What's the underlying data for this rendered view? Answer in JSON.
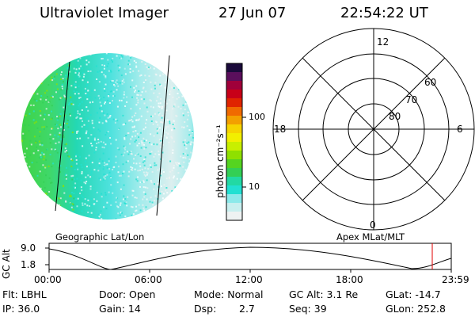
{
  "header": {
    "instrument": "Ultraviolet Imager",
    "date": "27 Jun 07",
    "time": "22:54:22 UT"
  },
  "colorbar": {
    "label": "photon cm⁻²s⁻¹",
    "ticks": [
      "100",
      "10"
    ],
    "colors": [
      "#1a0a3a",
      "#5a0f5c",
      "#a0003a",
      "#c80018",
      "#e02400",
      "#f06a00",
      "#f3a000",
      "#f6d400",
      "#f2ef00",
      "#c8ef00",
      "#8fe000",
      "#55d420",
      "#33cf55",
      "#22d9a4",
      "#22e0d2",
      "#8ce9ea",
      "#c8efef",
      "#eef2f2"
    ]
  },
  "polar": {
    "mlt_labels": {
      "top": "12",
      "left": "18",
      "right": "6",
      "bottom": "0"
    },
    "lat_labels": [
      "60",
      "70",
      "80"
    ]
  },
  "timeline": {
    "left_header": "Geographic Lat/Lon",
    "right_header": "Apex MLat/MLT",
    "ylabel": "GC Alt",
    "yticks": [
      "9.0",
      "1.8"
    ],
    "xticks": [
      "00:00",
      "06:00",
      "12:00",
      "18:00",
      "23:59"
    ]
  },
  "status": {
    "row1": {
      "flt": "Flt: LBHL",
      "door": "Door: Open",
      "mode": "Mode: Normal",
      "gc_alt": "GC Alt: 3.1 Re",
      "glat": "GLat: -14.7"
    },
    "row2": {
      "ip": "IP: 36.0",
      "gain": "Gain: 14",
      "dsp_label": "Dsp:",
      "dsp_value": "2.7",
      "seq": "Seq: 39",
      "glon": "GLon: 252.8"
    }
  }
}
